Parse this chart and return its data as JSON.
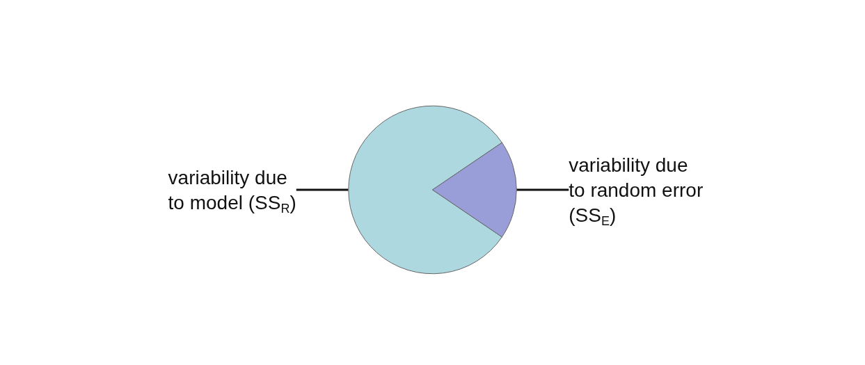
{
  "chart_data": {
    "type": "pie",
    "categories": [
      "variability due to model (SS$_{R}$)",
      "variability due to random error (SS$_{E}$)"
    ],
    "values": [
      81,
      19
    ],
    "colors": [
      "#aed8e0",
      "#9a9ed8"
    ]
  }
}
